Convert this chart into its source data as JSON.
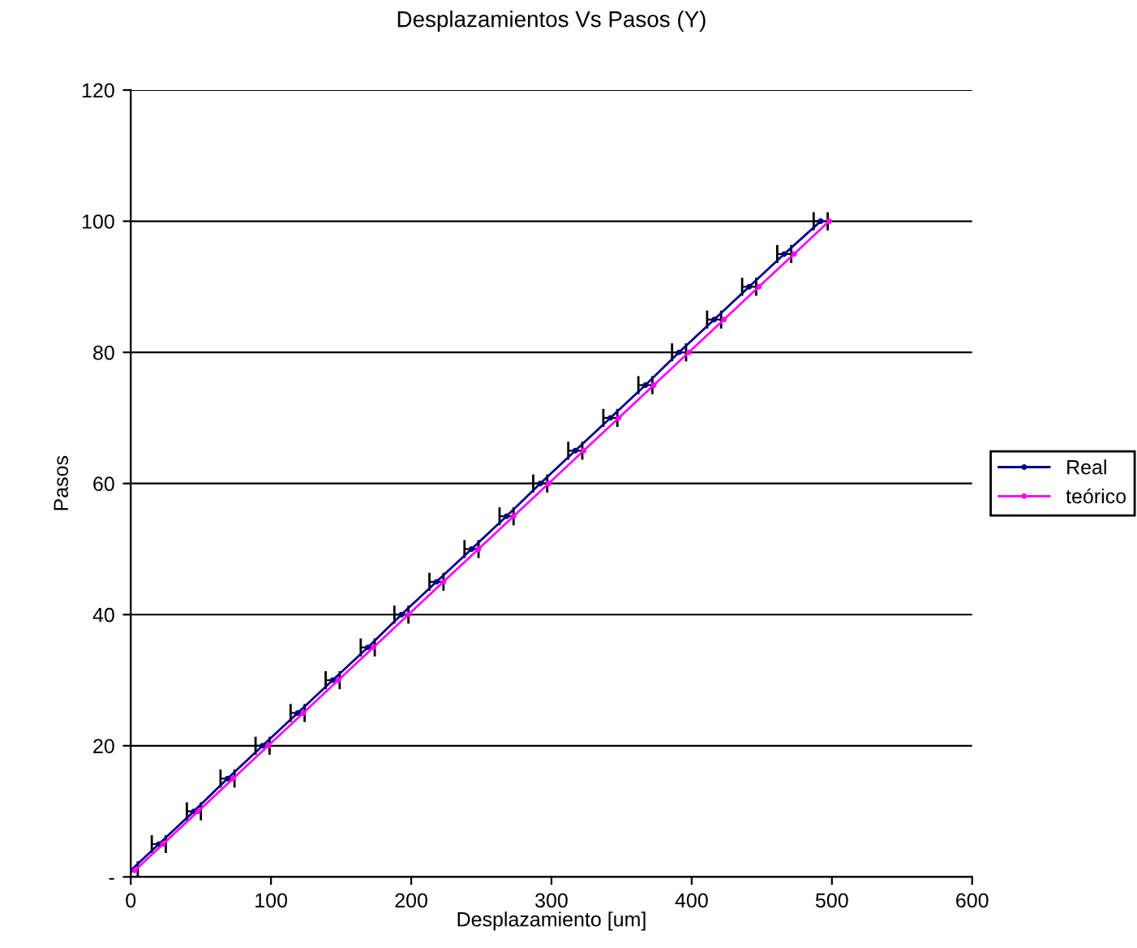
{
  "chart_data": {
    "type": "line",
    "title": "Desplazamientos Vs Pasos (Y)",
    "xlabel": "Desplazamiento [um]",
    "ylabel": "Pasos",
    "series": [
      {
        "name": "Real",
        "color": "#000080",
        "x": [
          0,
          20,
          45,
          69,
          94,
          119,
          144,
          169,
          193,
          218,
          243,
          268,
          292,
          317,
          342,
          367,
          391,
          416,
          441,
          466,
          492
        ],
        "values": [
          1,
          5,
          10,
          15,
          20,
          25,
          30,
          35,
          40,
          45,
          50,
          55,
          60,
          65,
          70,
          75,
          80,
          85,
          90,
          95,
          100
        ],
        "xerrors": [
          5,
          5,
          5,
          5,
          5,
          5,
          5,
          5,
          5,
          5,
          5,
          5,
          5,
          5,
          5,
          5,
          5,
          5,
          5,
          5,
          5
        ]
      },
      {
        "name": "teórico",
        "color": "#ff00ff",
        "x": [
          3,
          23,
          48,
          73,
          98,
          123,
          148,
          173,
          198,
          223,
          248,
          273,
          298,
          323,
          348,
          373,
          398,
          423,
          448,
          473,
          498
        ],
        "values": [
          1,
          5,
          10,
          15,
          20,
          25,
          30,
          35,
          40,
          45,
          50,
          55,
          60,
          65,
          70,
          75,
          80,
          85,
          90,
          95,
          100
        ]
      }
    ],
    "xlim": [
      0,
      600
    ],
    "xticks": [
      0,
      100,
      200,
      300,
      400,
      500,
      600
    ],
    "ylim": [
      0,
      120
    ],
    "yticks": [
      {
        "value": 0,
        "label": "-"
      },
      20,
      40,
      60,
      80,
      100,
      120
    ],
    "grid": "y",
    "legend": "right",
    "marker": "circle",
    "line_style": "solid"
  }
}
